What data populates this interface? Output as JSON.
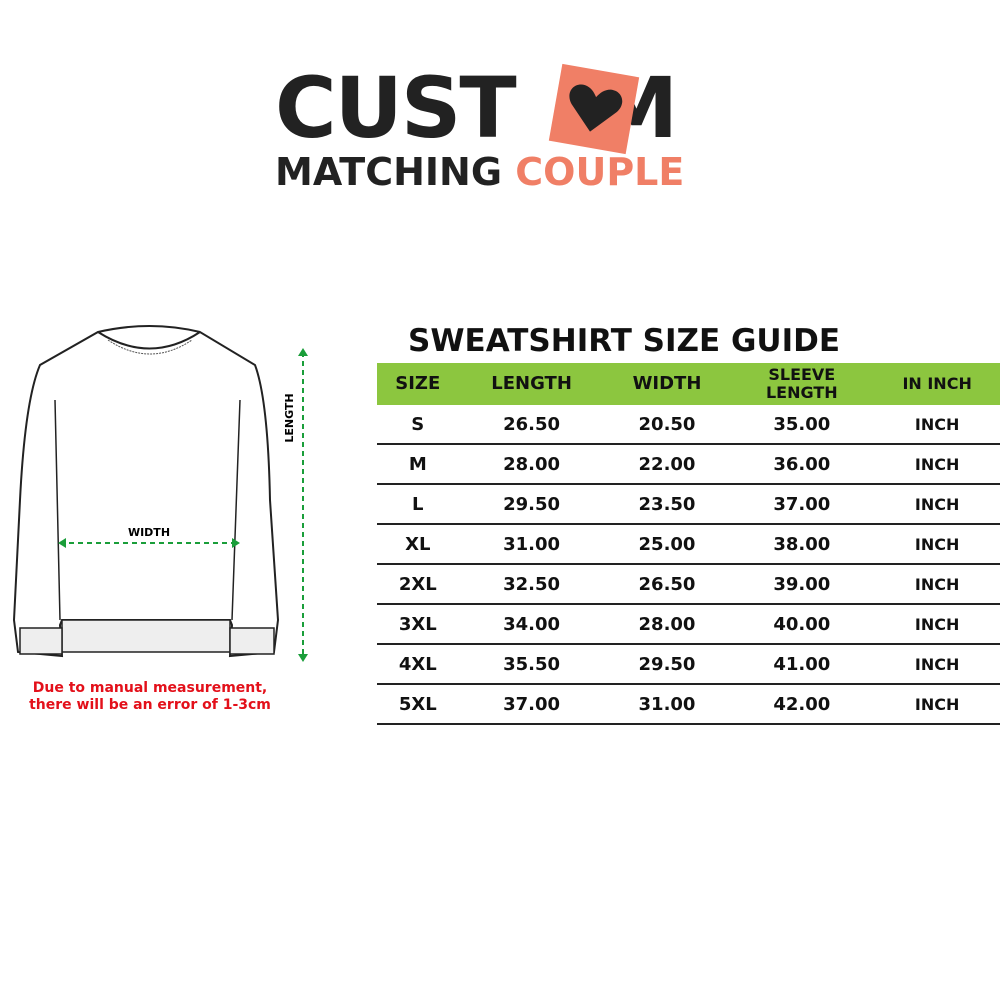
{
  "logo": {
    "word1": "CUST",
    "word1_end": "M",
    "line2_dark": "MATCHING",
    "line2_accent": "COUPLE",
    "heart_icon": "heart-icon",
    "accent_color": "#f07f66"
  },
  "diagram": {
    "width_label": "WIDTH",
    "length_label": "LENGTH",
    "arrow_color": "#1a9e3a"
  },
  "note": {
    "line1": "Due to manual measurement,",
    "line2": "there will be an error of 1-3cm"
  },
  "guide": {
    "title": "SWEATSHIRT SIZE GUIDE",
    "header_color": "#8cc63f",
    "columns": [
      "SIZE",
      "LENGTH",
      "WIDTH",
      "SLEEVE LENGTH",
      "IN INCH"
    ],
    "rows": [
      [
        "S",
        "26.50",
        "20.50",
        "35.00",
        "INCH"
      ],
      [
        "M",
        "28.00",
        "22.00",
        "36.00",
        "INCH"
      ],
      [
        "L",
        "29.50",
        "23.50",
        "37.00",
        "INCH"
      ],
      [
        "XL",
        "31.00",
        "25.00",
        "38.00",
        "INCH"
      ],
      [
        "2XL",
        "32.50",
        "26.50",
        "39.00",
        "INCH"
      ],
      [
        "3XL",
        "34.00",
        "28.00",
        "40.00",
        "INCH"
      ],
      [
        "4XL",
        "35.50",
        "29.50",
        "41.00",
        "INCH"
      ],
      [
        "5XL",
        "37.00",
        "31.00",
        "42.00",
        "INCH"
      ]
    ]
  }
}
